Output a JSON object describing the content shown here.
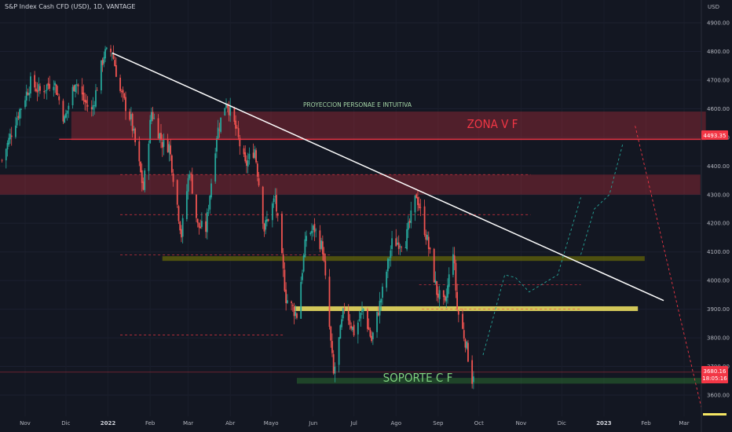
{
  "title": "S&P Index Cash CFD (USD), 1D, VANTAGE",
  "chart_data": {
    "type": "candlestick",
    "currency": "USD",
    "y_ticks": [
      "4900.00",
      "4800.00",
      "4700.00",
      "4600.00",
      "4500.00",
      "4400.00",
      "4300.00",
      "4200.00",
      "4100.00",
      "4000.00",
      "3900.00",
      "3800.00",
      "3700.00",
      "3600.00"
    ],
    "y_tick_values": [
      4900,
      4800,
      4700,
      4600,
      4500,
      4400,
      4300,
      4200,
      4100,
      4000,
      3900,
      3800,
      3700,
      3600
    ],
    "ylim": [
      3550,
      4960
    ],
    "x_ticks": [
      {
        "label": "Nov",
        "x": "2021-11-01"
      },
      {
        "label": "Dic",
        "x": "2021-12-01"
      },
      {
        "label": "2022",
        "x": "2022-01-01",
        "bold": true
      },
      {
        "label": "Feb",
        "x": "2022-02-01"
      },
      {
        "label": "Mar",
        "x": "2022-03-01"
      },
      {
        "label": "Abr",
        "x": "2022-04-01"
      },
      {
        "label": "Mayo",
        "x": "2022-05-01"
      },
      {
        "label": "Jun",
        "x": "2022-06-01"
      },
      {
        "label": "Jul",
        "x": "2022-07-01"
      },
      {
        "label": "Ago",
        "x": "2022-08-01"
      },
      {
        "label": "Sep",
        "x": "2022-09-01"
      },
      {
        "label": "Oct",
        "x": "2022-10-01"
      },
      {
        "label": "Nov",
        "x": "2022-11-01"
      },
      {
        "label": "Dic",
        "x": "2022-12-01"
      },
      {
        "label": "2023",
        "x": "2023-01-01",
        "bold": true
      },
      {
        "label": "Feb",
        "x": "2023-02-01"
      },
      {
        "label": "Mar",
        "x": "2023-03-01"
      }
    ],
    "price_path": [
      [
        "2021-10-15",
        4420
      ],
      [
        "2021-10-25",
        4560
      ],
      [
        "2021-11-05",
        4690
      ],
      [
        "2021-11-12",
        4660
      ],
      [
        "2021-11-22",
        4700
      ],
      [
        "2021-11-30",
        4560
      ],
      [
        "2021-12-08",
        4700
      ],
      [
        "2021-12-14",
        4630
      ],
      [
        "2021-12-20",
        4590
      ],
      [
        "2021-12-29",
        4790
      ],
      [
        "2022-01-04",
        4800
      ],
      [
        "2022-01-10",
        4660
      ],
      [
        "2022-01-18",
        4560
      ],
      [
        "2022-01-27",
        4320
      ],
      [
        "2022-02-02",
        4590
      ],
      [
        "2022-02-10",
        4480
      ],
      [
        "2022-02-15",
        4470
      ],
      [
        "2022-02-24",
        4160
      ],
      [
        "2022-03-02",
        4390
      ],
      [
        "2022-03-08",
        4190
      ],
      [
        "2022-03-14",
        4180
      ],
      [
        "2022-03-22",
        4510
      ],
      [
        "2022-03-29",
        4630
      ],
      [
        "2022-04-05",
        4530
      ],
      [
        "2022-04-12",
        4400
      ],
      [
        "2022-04-19",
        4460
      ],
      [
        "2022-04-26",
        4180
      ],
      [
        "2022-05-04",
        4290
      ],
      [
        "2022-05-12",
        3940
      ],
      [
        "2022-05-20",
        3880
      ],
      [
        "2022-05-27",
        4160
      ],
      [
        "2022-06-02",
        4180
      ],
      [
        "2022-06-08",
        4110
      ],
      [
        "2022-06-16",
        3670
      ],
      [
        "2022-06-24",
        3910
      ],
      [
        "2022-07-01",
        3820
      ],
      [
        "2022-07-08",
        3900
      ],
      [
        "2022-07-14",
        3790
      ],
      [
        "2022-07-22",
        3960
      ],
      [
        "2022-07-29",
        4130
      ],
      [
        "2022-08-08",
        4140
      ],
      [
        "2022-08-16",
        4300
      ],
      [
        "2022-08-24",
        4140
      ],
      [
        "2022-08-31",
        3960
      ],
      [
        "2022-09-06",
        3910
      ],
      [
        "2022-09-12",
        4110
      ],
      [
        "2022-09-15",
        3900
      ],
      [
        "2022-09-21",
        3790
      ],
      [
        "2022-09-26",
        3655
      ],
      [
        "2022-09-27",
        3680
      ]
    ],
    "current_price": "3680.16",
    "countdown": "18:05:16",
    "level_label": "4493.35",
    "annotations": [
      {
        "text": "PROYECCION PERSONAE E INTUITIVA"
      },
      {
        "text": "ZONA V F"
      },
      {
        "text": "SOPORTE C F"
      }
    ],
    "drawings": {
      "trendline": {
        "from": [
          "2022-01-04",
          4795
        ],
        "to": [
          "2023-02-14",
          3930
        ]
      },
      "zones": [
        {
          "name": "zona-v-f",
          "x1": "2021-12-05",
          "x2": "2023-03-17",
          "y1": 4490,
          "y2": 4590,
          "color": "#f23645"
        },
        {
          "name": "upper-resistance",
          "x1": "2021-10-10",
          "x2": "2023-03-13",
          "y1": 4300,
          "y2": 4370,
          "color": "#f23645"
        },
        {
          "name": "middle-zone",
          "x1": "2022-02-10",
          "x2": "2023-01-31",
          "y1": 4070,
          "y2": 4085,
          "color": "#808000"
        },
        {
          "name": "yellow-support",
          "x1": "2022-05-18",
          "x2": "2023-01-26",
          "y1": 3895,
          "y2": 3910,
          "color": "#f5e663"
        },
        {
          "name": "soporte-c-f",
          "x1": "2022-05-20",
          "x2": "2023-03-17",
          "y1": 3640,
          "y2": 3660,
          "color": "#2e7d32"
        }
      ],
      "level_line": {
        "y": 4493.35,
        "x1": "2021-11-26"
      },
      "dashed_levels": [
        {
          "y": 4370,
          "x1": "2022-01-10",
          "x2": "2022-11-08"
        },
        {
          "y": 4230,
          "x1": "2022-01-10",
          "x2": "2022-11-08"
        },
        {
          "y": 4090,
          "x1": "2022-01-10",
          "x2": "2022-06-15"
        },
        {
          "y": 3985,
          "x1": "2022-08-18",
          "x2": "2022-12-15"
        },
        {
          "y": 3900,
          "x1": "2022-08-20",
          "x2": "2022-12-15"
        },
        {
          "y": 3810,
          "x1": "2022-01-10",
          "x2": "2022-05-10"
        }
      ],
      "projection_paths": [
        [
          [
            "2022-10-04",
            3740
          ],
          [
            "2022-10-20",
            4020
          ],
          [
            "2022-10-28",
            4010
          ],
          [
            "2022-11-07",
            3960
          ],
          [
            "2022-11-28",
            4020
          ],
          [
            "2022-12-15",
            4290
          ]
        ],
        [
          [
            "2022-12-15",
            4090
          ],
          [
            "2022-12-25",
            4250
          ],
          [
            "2023-01-05",
            4300
          ],
          [
            "2023-01-15",
            4480
          ]
        ],
        [
          [
            "2023-01-24",
            4540
          ],
          [
            "2023-03-14",
            3550
          ]
        ]
      ]
    }
  },
  "colors": {
    "background": "#131722",
    "up": "#26a69a",
    "down": "#ef5350",
    "zone_label": "#f23645",
    "support_label": "#7ed07e",
    "projection_text": "#a5d6a7",
    "trendline": "#ffffff"
  }
}
